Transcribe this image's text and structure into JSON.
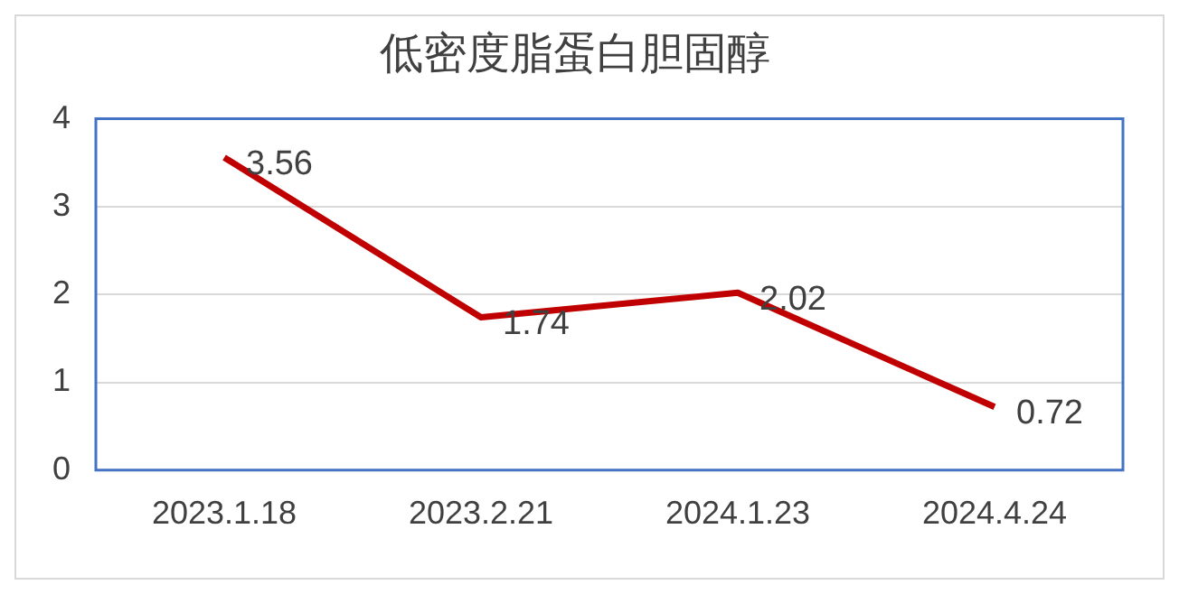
{
  "chart_data": {
    "type": "line",
    "title": "低密度脂蛋白胆固醇",
    "categories": [
      "2023.1.18",
      "2023.2.21",
      "2024.1.23",
      "2024.4.24"
    ],
    "series": [
      {
        "color": "#c00000",
        "values": [
          3.56,
          1.74,
          2.02,
          0.72
        ]
      }
    ],
    "ylim": [
      0,
      4
    ],
    "yticks": [
      0,
      1,
      2,
      3,
      4
    ],
    "grid": "y",
    "legend": false,
    "data_labels": true,
    "marker": "none",
    "line_style": "solid"
  }
}
